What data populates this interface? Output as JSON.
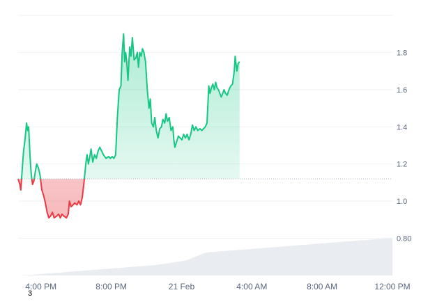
{
  "chart_data": {
    "type": "area",
    "title": "",
    "xlabel": "",
    "ylabel": "",
    "baseline": 1.12,
    "ylim": [
      0.6,
      2.0
    ],
    "y_ticks": [
      1.8,
      1.6,
      1.4,
      1.2,
      1.0,
      0.8
    ],
    "y_tick_labels": [
      "1.8",
      "1.6",
      "1.4",
      "1.2",
      "1.0",
      "0.80"
    ],
    "x_ticks": [
      {
        "t": 16,
        "label": "4:00 PM"
      },
      {
        "t": 20,
        "label": "8:00 PM"
      },
      {
        "t": 24,
        "label": "21 Feb"
      },
      {
        "t": 28,
        "label": "4:00 AM"
      },
      {
        "t": 32,
        "label": "8:00 AM"
      },
      {
        "t": 36,
        "label": "12:00 PM"
      }
    ],
    "x_range": [
      14.7,
      36.0
    ],
    "colors": {
      "up": "#16c784",
      "down": "#ea3943",
      "volume": "#e9ecf0",
      "grid": "#eff2f5",
      "text": "#58667e"
    },
    "series": [
      {
        "values": [
          [
            14.7,
            1.12
          ],
          [
            14.8,
            1.09
          ],
          [
            14.85,
            1.06
          ],
          [
            14.92,
            1.15
          ],
          [
            15.0,
            1.26
          ],
          [
            15.1,
            1.34
          ],
          [
            15.18,
            1.42
          ],
          [
            15.24,
            1.38
          ],
          [
            15.3,
            1.4
          ],
          [
            15.38,
            1.24
          ],
          [
            15.45,
            1.14
          ],
          [
            15.52,
            1.09
          ],
          [
            15.6,
            1.11
          ],
          [
            15.68,
            1.16
          ],
          [
            15.76,
            1.2
          ],
          [
            15.85,
            1.18
          ],
          [
            15.95,
            1.14
          ],
          [
            16.05,
            1.06
          ],
          [
            16.15,
            1.03
          ],
          [
            16.25,
            0.99
          ],
          [
            16.35,
            0.94
          ],
          [
            16.45,
            0.91
          ],
          [
            16.55,
            0.92
          ],
          [
            16.65,
            0.94
          ],
          [
            16.75,
            0.91
          ],
          [
            16.9,
            0.92
          ],
          [
            17.0,
            0.93
          ],
          [
            17.1,
            0.91
          ],
          [
            17.2,
            0.93
          ],
          [
            17.3,
            0.92
          ],
          [
            17.45,
            0.91
          ],
          [
            17.55,
            0.93
          ],
          [
            17.62,
            1.0
          ],
          [
            17.72,
            0.97
          ],
          [
            17.82,
            0.98
          ],
          [
            17.92,
            0.99
          ],
          [
            18.05,
            0.98
          ],
          [
            18.15,
            1.0
          ],
          [
            18.25,
            0.98
          ],
          [
            18.35,
            1.02
          ],
          [
            18.45,
            1.1
          ],
          [
            18.55,
            1.2
          ],
          [
            18.62,
            1.25
          ],
          [
            18.7,
            1.2
          ],
          [
            18.78,
            1.24
          ],
          [
            18.85,
            1.28
          ],
          [
            18.95,
            1.21
          ],
          [
            19.05,
            1.25
          ],
          [
            19.15,
            1.23
          ],
          [
            19.25,
            1.27
          ],
          [
            19.35,
            1.29
          ],
          [
            19.45,
            1.27
          ],
          [
            19.55,
            1.25
          ],
          [
            19.7,
            1.23
          ],
          [
            19.85,
            1.24
          ],
          [
            19.95,
            1.23
          ],
          [
            20.05,
            1.24
          ],
          [
            20.15,
            1.23
          ],
          [
            20.25,
            1.25
          ],
          [
            20.35,
            1.45
          ],
          [
            20.45,
            1.6
          ],
          [
            20.55,
            1.62
          ],
          [
            20.62,
            1.8
          ],
          [
            20.7,
            1.9
          ],
          [
            20.76,
            1.75
          ],
          [
            20.82,
            1.8
          ],
          [
            20.88,
            1.75
          ],
          [
            20.95,
            1.65
          ],
          [
            21.05,
            1.83
          ],
          [
            21.12,
            1.78
          ],
          [
            21.2,
            1.88
          ],
          [
            21.3,
            1.76
          ],
          [
            21.4,
            1.77
          ],
          [
            21.48,
            1.8
          ],
          [
            21.55,
            1.72
          ],
          [
            21.62,
            1.8
          ],
          [
            21.7,
            1.78
          ],
          [
            21.78,
            1.82
          ],
          [
            21.86,
            1.8
          ],
          [
            21.95,
            1.75
          ],
          [
            22.05,
            1.6
          ],
          [
            22.15,
            1.5
          ],
          [
            22.22,
            1.55
          ],
          [
            22.3,
            1.42
          ],
          [
            22.4,
            1.4
          ],
          [
            22.48,
            1.45
          ],
          [
            22.56,
            1.38
          ],
          [
            22.66,
            1.34
          ],
          [
            22.76,
            1.39
          ],
          [
            22.86,
            1.4
          ],
          [
            22.94,
            1.44
          ],
          [
            23.04,
            1.42
          ],
          [
            23.12,
            1.47
          ],
          [
            23.2,
            1.43
          ],
          [
            23.3,
            1.45
          ],
          [
            23.4,
            1.38
          ],
          [
            23.5,
            1.4
          ],
          [
            23.56,
            1.33
          ],
          [
            23.62,
            1.29
          ],
          [
            23.72,
            1.32
          ],
          [
            23.82,
            1.35
          ],
          [
            23.92,
            1.34
          ],
          [
            24.02,
            1.33
          ],
          [
            24.12,
            1.36
          ],
          [
            24.22,
            1.34
          ],
          [
            24.32,
            1.36
          ],
          [
            24.42,
            1.33
          ],
          [
            24.52,
            1.36
          ],
          [
            24.62,
            1.41
          ],
          [
            24.72,
            1.38
          ],
          [
            24.82,
            1.4
          ],
          [
            24.92,
            1.38
          ],
          [
            25.05,
            1.39
          ],
          [
            25.15,
            1.38
          ],
          [
            25.25,
            1.39
          ],
          [
            25.35,
            1.4
          ],
          [
            25.45,
            1.42
          ],
          [
            25.55,
            1.62
          ],
          [
            25.62,
            1.58
          ],
          [
            25.7,
            1.61
          ],
          [
            25.78,
            1.63
          ],
          [
            25.86,
            1.6
          ],
          [
            25.94,
            1.64
          ],
          [
            26.02,
            1.61
          ],
          [
            26.1,
            1.6
          ],
          [
            26.18,
            1.58
          ],
          [
            26.26,
            1.56
          ],
          [
            26.34,
            1.58
          ],
          [
            26.42,
            1.6
          ],
          [
            26.5,
            1.58
          ],
          [
            26.6,
            1.57
          ],
          [
            26.7,
            1.6
          ],
          [
            26.8,
            1.62
          ],
          [
            26.9,
            1.63
          ],
          [
            27.0,
            1.7
          ],
          [
            27.05,
            1.78
          ],
          [
            27.1,
            1.74
          ],
          [
            27.15,
            1.7
          ],
          [
            27.22,
            1.74
          ],
          [
            27.3,
            1.75
          ]
        ]
      }
    ],
    "volume_values": [
      0.02,
      0.03,
      0.04,
      0.05,
      0.06,
      0.07,
      0.08,
      0.09,
      0.1,
      0.11,
      0.12,
      0.13,
      0.14,
      0.15,
      0.16,
      0.17,
      0.18,
      0.19,
      0.2,
      0.21,
      0.22,
      0.23,
      0.24,
      0.25,
      0.26,
      0.27,
      0.28,
      0.3,
      0.32,
      0.34,
      0.36,
      0.38,
      0.4,
      0.45,
      0.5,
      0.55,
      0.6,
      0.62,
      0.63,
      0.64,
      0.65,
      0.66,
      0.67,
      0.68,
      0.69,
      0.7,
      0.71,
      0.72,
      0.73,
      0.74,
      0.75,
      0.76,
      0.77,
      0.78,
      0.79,
      0.8,
      0.81,
      0.82,
      0.83,
      0.84,
      0.85,
      0.86,
      0.87,
      0.88,
      0.89,
      0.9,
      0.91,
      0.92,
      0.93,
      0.94,
      0.95,
      0.96,
      0.97,
      0.98,
      0.99,
      1.0
    ],
    "footnote": "3"
  }
}
